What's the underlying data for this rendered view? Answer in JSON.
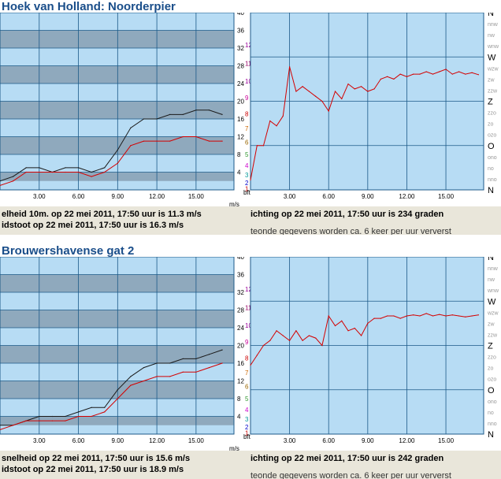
{
  "stations": [
    {
      "title": "Hoek van Holland: Noorderpier",
      "speed_text": "elheid 10m. op 22 mei 2011, 17:50 uur is 11.3 m/s",
      "gust_text": "idstoot op 22 mei 2011, 17:50 uur is 16.3 m/s",
      "direction_text": "ichting op 22 mei 2011, 17:50 uur is 234 graden",
      "note_text": "teonde gegevens worden ca. 6 keer per uur ververst"
    },
    {
      "title": "Brouwershavense gat 2",
      "speed_text": "snelheid op 22 mei 2011, 17:50 uur is 15.6 m/s",
      "gust_text": "idstoot op 22 mei 2011, 17:50 uur is 18.9 m/s",
      "direction_text": "ichting op 22 mei 2011, 17:50 uur is 242 graden",
      "note_text": "teonde gegevens worden ca. 6 keer per uur ververst"
    }
  ],
  "chart_data": [
    {
      "type": "line",
      "station": "Hoek van Holland: Noorderpier",
      "panel": "speed",
      "x": [
        0,
        1,
        2,
        3,
        4,
        5,
        6,
        7,
        8,
        9,
        10,
        11,
        12,
        13,
        14,
        15,
        16,
        17
      ],
      "xlim": [
        0,
        17.9
      ],
      "ylim": [
        0,
        40
      ],
      "ylabel": "m/s",
      "xticks": [
        "3.00",
        "6.00",
        "9.00",
        "12.00",
        "15.00"
      ],
      "yticks": [
        "4",
        "8",
        "12",
        "16",
        "20",
        "24",
        "28",
        "32",
        "36",
        "40"
      ],
      "bft_label": "bft",
      "bft_ticks": [
        "1",
        "2",
        "3",
        "4",
        "5",
        "6",
        "7",
        "8",
        "9",
        "10",
        "11",
        "12"
      ],
      "series": [
        {
          "values": [
            2,
            3,
            5,
            5,
            4,
            5,
            5,
            4,
            5,
            9,
            14,
            16,
            16,
            17,
            17,
            18,
            18,
            17
          ],
          "color": "#1a1a1a"
        },
        {
          "values": [
            1,
            2,
            4,
            4,
            4,
            4,
            4,
            3,
            4,
            6,
            10,
            11,
            11,
            11,
            12,
            12,
            11,
            11
          ],
          "color": "#d40000"
        }
      ]
    },
    {
      "type": "line",
      "station": "Hoek van Holland: Noorderpier",
      "panel": "direction",
      "x": [
        0,
        0.5,
        1,
        1.5,
        2,
        2.5,
        3,
        3.5,
        4,
        4.5,
        5,
        5.5,
        6,
        6.5,
        7,
        7.5,
        8,
        8.5,
        9,
        9.5,
        10,
        10.5,
        11,
        11.5,
        12,
        12.5,
        13,
        13.5,
        14,
        14.5,
        15,
        15.5,
        16,
        16.5,
        17,
        17.5
      ],
      "xlim": [
        0,
        17.9
      ],
      "ylim": [
        0,
        360
      ],
      "xticks": [
        "3.00",
        "6.00",
        "9.00",
        "12.00",
        "15.00"
      ],
      "dir_ticks": [
        "N",
        "nno",
        "no",
        "ono",
        "O",
        "ozo",
        "zo",
        "zzo",
        "Z",
        "zzw",
        "zw",
        "wzw",
        "W",
        "wnw",
        "nw",
        "nnw",
        "N"
      ],
      "series": [
        {
          "values": [
            20,
            90,
            90,
            140,
            130,
            150,
            250,
            200,
            210,
            200,
            190,
            180,
            160,
            200,
            185,
            215,
            205,
            210,
            200,
            205,
            225,
            230,
            225,
            235,
            230,
            235,
            235,
            240,
            235,
            240,
            245,
            235,
            240,
            235,
            238,
            234
          ],
          "color": "#d40000"
        }
      ]
    },
    {
      "type": "line",
      "station": "Brouwershavense gat 2",
      "panel": "speed",
      "x": [
        0,
        1,
        2,
        3,
        4,
        5,
        6,
        7,
        8,
        9,
        10,
        11,
        12,
        13,
        14,
        15,
        16,
        17
      ],
      "xlim": [
        0,
        17.9
      ],
      "ylim": [
        0,
        40
      ],
      "ylabel": "m/s",
      "xticks": [
        "3.00",
        "6.00",
        "9.00",
        "12.00",
        "15.00"
      ],
      "yticks": [
        "4",
        "8",
        "12",
        "16",
        "20",
        "24",
        "28",
        "32",
        "36",
        "40"
      ],
      "bft_label": "bft",
      "bft_ticks": [
        "1",
        "2",
        "3",
        "4",
        "5",
        "6",
        "7",
        "8",
        "9",
        "10",
        "11",
        "12"
      ],
      "series": [
        {
          "values": [
            2,
            2,
            3,
            4,
            4,
            4,
            5,
            6,
            6,
            10,
            13,
            15,
            16,
            16,
            17,
            17,
            18,
            19
          ],
          "color": "#1a1a1a"
        },
        {
          "values": [
            1,
            2,
            3,
            3,
            3,
            3,
            4,
            4,
            5,
            8,
            11,
            12,
            13,
            13,
            14,
            14,
            15,
            16
          ],
          "color": "#d40000"
        }
      ]
    },
    {
      "type": "line",
      "station": "Brouwershavense gat 2",
      "panel": "direction",
      "x": [
        0,
        0.5,
        1,
        1.5,
        2,
        2.5,
        3,
        3.5,
        4,
        4.5,
        5,
        5.5,
        6,
        6.5,
        7,
        7.5,
        8,
        8.5,
        9,
        9.5,
        10,
        10.5,
        11,
        11.5,
        12,
        12.5,
        13,
        13.5,
        14,
        14.5,
        15,
        15.5,
        16,
        16.5,
        17,
        17.5
      ],
      "xlim": [
        0,
        17.9
      ],
      "ylim": [
        0,
        360
      ],
      "xticks": [
        "3.00",
        "6.00",
        "9.00",
        "12.00",
        "15.00"
      ],
      "dir_ticks": [
        "N",
        "nno",
        "no",
        "ono",
        "O",
        "ozo",
        "zo",
        "zzo",
        "Z",
        "zzw",
        "zw",
        "wzw",
        "W",
        "wnw",
        "nw",
        "nnw",
        "N"
      ],
      "series": [
        {
          "values": [
            140,
            160,
            180,
            190,
            210,
            200,
            190,
            210,
            190,
            200,
            195,
            180,
            240,
            220,
            230,
            210,
            215,
            200,
            225,
            235,
            235,
            240,
            240,
            235,
            240,
            242,
            240,
            245,
            240,
            243,
            240,
            242,
            240,
            238,
            240,
            242
          ],
          "color": "#d40000"
        }
      ]
    }
  ]
}
